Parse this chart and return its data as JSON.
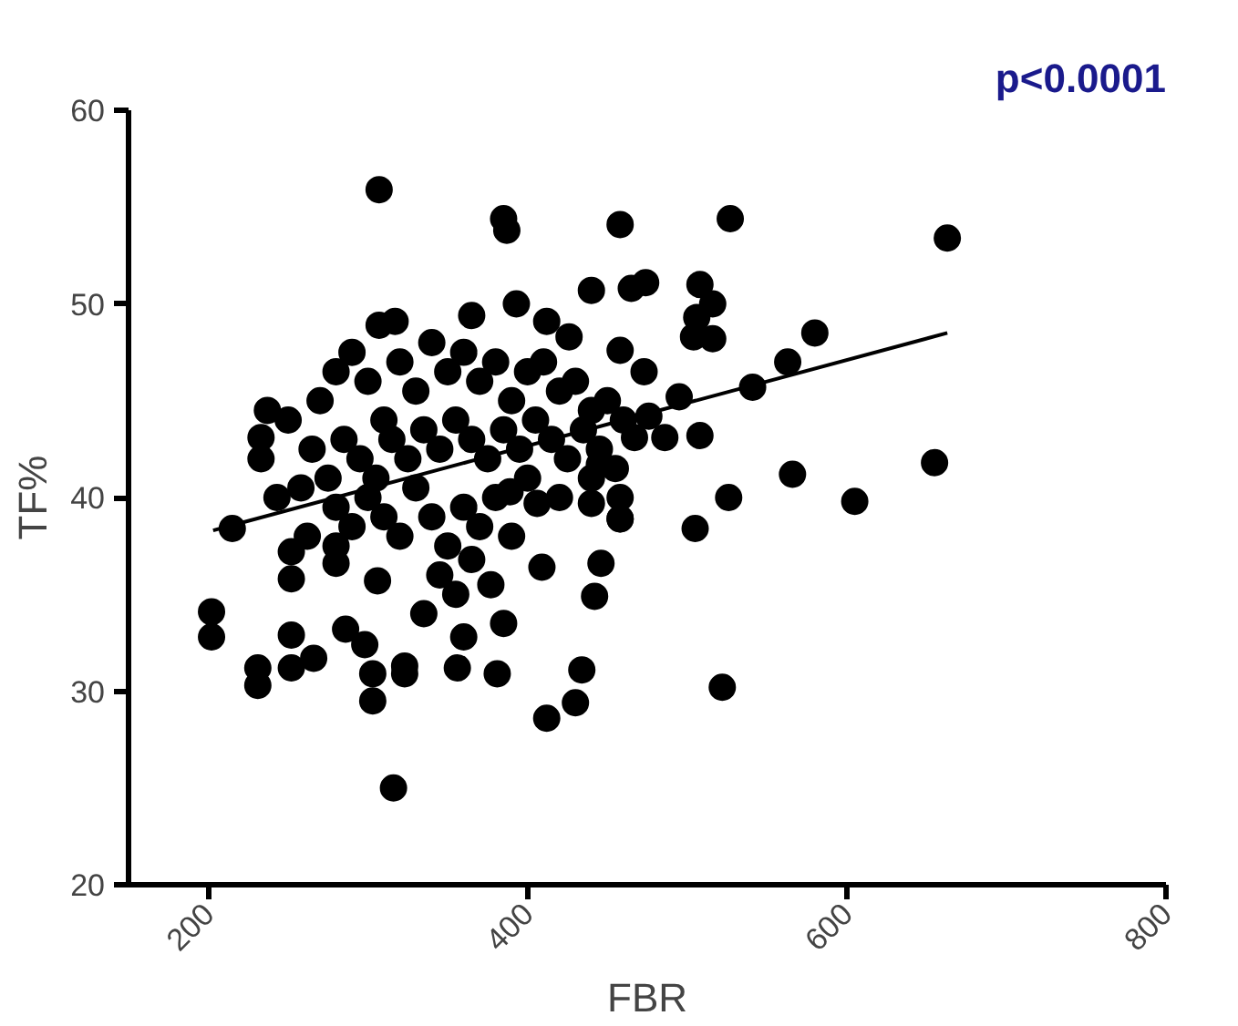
{
  "chart_data": {
    "type": "scatter",
    "xlabel": "FBR",
    "ylabel": "TF%",
    "annotations": [
      "p<0.0001"
    ],
    "xlim": [
      150,
      800
    ],
    "ylim": [
      20,
      60
    ],
    "xticks": [
      200,
      400,
      600,
      800
    ],
    "yticks": [
      20,
      30,
      40,
      50,
      60
    ],
    "grid": false,
    "series": [
      {
        "marker": "circle",
        "color": "#000000",
        "x": [
          307,
          385,
          387,
          458,
          440,
          465,
          317,
          307,
          365,
          393,
          412,
          426,
          237,
          233,
          233,
          243,
          215,
          202,
          202,
          252,
          252,
          280,
          280,
          306,
          231,
          231,
          252,
          252,
          266,
          286,
          298,
          303,
          303,
          323,
          323,
          316,
          356,
          381,
          360,
          385,
          377,
          409,
          412,
          430,
          434,
          442,
          446,
          440,
          458,
          445,
          458,
          406,
          389,
          474,
          508,
          516,
          506,
          504,
          516,
          580,
          563,
          541,
          495,
          473,
          476,
          486,
          467,
          508,
          566,
          526,
          605,
          655,
          505,
          458,
          458,
          522,
          663,
          527,
          270,
          280,
          290,
          300,
          310,
          320,
          330,
          340,
          350,
          360,
          370,
          380,
          390,
          400,
          410,
          420,
          430,
          440,
          450,
          460,
          265,
          275,
          285,
          295,
          305,
          315,
          325,
          335,
          345,
          355,
          365,
          375,
          385,
          395,
          405,
          415,
          425,
          435,
          445,
          455,
          280,
          290,
          300,
          310,
          320,
          330,
          340,
          350,
          360,
          370,
          380,
          390,
          400,
          420,
          440,
          250,
          258,
          262,
          345,
          355,
          335,
          365
        ],
        "values": [
          55.9,
          54.4,
          53.8,
          54.1,
          50.7,
          50.8,
          49.1,
          48.9,
          49.4,
          50.0,
          49.1,
          48.3,
          44.5,
          43.1,
          42.0,
          40.0,
          38.4,
          34.1,
          32.8,
          37.2,
          35.8,
          37.5,
          36.6,
          35.7,
          31.2,
          30.3,
          32.9,
          31.2,
          31.7,
          33.2,
          32.4,
          30.9,
          29.5,
          30.9,
          31.3,
          25.0,
          31.2,
          30.9,
          32.8,
          33.5,
          35.5,
          36.4,
          28.6,
          29.4,
          31.1,
          34.9,
          36.6,
          39.7,
          38.9,
          41.7,
          47.6,
          39.7,
          40.3,
          51.1,
          51.0,
          50.0,
          49.3,
          48.3,
          48.2,
          48.5,
          47.0,
          45.7,
          45.2,
          46.5,
          44.2,
          43.1,
          43.1,
          43.2,
          41.2,
          40.0,
          39.8,
          41.8,
          38.4,
          40.0,
          38.9,
          30.2,
          53.4,
          54.4,
          45,
          46.5,
          47.5,
          46,
          44,
          47,
          45.5,
          48,
          46.5,
          47.5,
          46,
          47,
          45,
          46.5,
          47,
          45.5,
          46,
          44.5,
          45,
          44,
          42.5,
          41,
          43,
          42,
          41,
          43,
          42,
          43.5,
          42.5,
          44,
          43,
          42,
          43.5,
          42.5,
          44,
          43,
          42,
          43.5,
          42.5,
          41.5,
          39.5,
          38.5,
          40,
          39,
          38,
          40.5,
          39,
          37.5,
          39.5,
          38.5,
          40,
          38,
          41,
          40,
          41,
          44,
          40.5,
          38,
          36,
          35,
          34,
          36.8
        ]
      },
      {
        "type": "line",
        "color": "#000000",
        "line_style": "solid",
        "x": [
          203,
          663
        ],
        "values": [
          38.3,
          48.5
        ]
      }
    ]
  }
}
